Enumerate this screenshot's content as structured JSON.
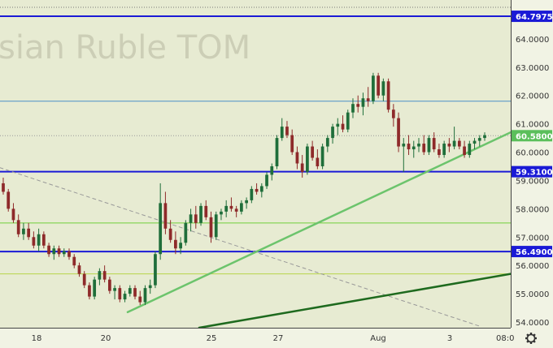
{
  "watermark": "sian Ruble TOM",
  "time_readout": "08:0",
  "settings_icon": "gear-icon",
  "chart_data": {
    "type": "candlestick",
    "ylim": [
      53.8,
      65.2
    ],
    "y_ticks": [
      "64.0000",
      "63.0000",
      "62.0000",
      "61.0000",
      "60.0000",
      "59.0000",
      "58.0000",
      "57.0000",
      "56.0000",
      "55.0000",
      "54.0000"
    ],
    "x_ticks": [
      "18",
      "20",
      "25",
      "27",
      "Aug",
      "3"
    ],
    "price_labels": [
      {
        "value": "64.7975",
        "color": "#1a1ad6"
      },
      {
        "value": "60.5800",
        "color": "#5bbf5b"
      },
      {
        "value": "59.3100",
        "color": "#1a1ad6"
      },
      {
        "value": "56.4900",
        "color": "#1a1ad6"
      }
    ],
    "horizontal_levels": [
      {
        "y": 64.7975,
        "color": "#1a1ad6",
        "width": 2,
        "style": "solid"
      },
      {
        "y": 61.8,
        "color": "#4a90c8",
        "width": 1,
        "style": "solid"
      },
      {
        "y": 60.58,
        "color": "#999999",
        "width": 1,
        "style": "dotted"
      },
      {
        "y": 59.31,
        "color": "#1a1ad6",
        "width": 2,
        "style": "solid"
      },
      {
        "y": 57.5,
        "color": "#6fcf3a",
        "width": 1,
        "style": "solid"
      },
      {
        "y": 56.49,
        "color": "#1a1ad6",
        "width": 2,
        "style": "solid"
      },
      {
        "y": 55.7,
        "color": "#b7d44a",
        "width": 1,
        "style": "solid"
      }
    ],
    "trend_lines": [
      {
        "x1": 0,
        "y1": 59.45,
        "x2": 94,
        "y2": 53.85,
        "color": "#999999",
        "width": 1,
        "style": "dashed"
      },
      {
        "x1": 25,
        "y1": 54.35,
        "x2": 100,
        "y2": 60.7,
        "color": "#6cc46c",
        "width": 2.5,
        "style": "solid"
      },
      {
        "x1": 39,
        "y1": 53.8,
        "x2": 100,
        "y2": 55.7,
        "color": "#1e6a1e",
        "width": 2.5,
        "style": "solid"
      }
    ],
    "colors": {
      "up": "#1f6e3a",
      "down": "#8e2a2a"
    },
    "candles": [
      [
        58.9,
        59.1,
        58.5,
        58.6
      ],
      [
        58.6,
        58.7,
        57.9,
        58.0
      ],
      [
        58.0,
        58.2,
        57.5,
        57.6
      ],
      [
        57.6,
        57.8,
        57.0,
        57.1
      ],
      [
        57.1,
        57.5,
        56.9,
        57.3
      ],
      [
        57.3,
        57.5,
        56.9,
        57.0
      ],
      [
        57.0,
        57.2,
        56.6,
        56.7
      ],
      [
        56.7,
        57.3,
        56.5,
        57.1
      ],
      [
        57.1,
        57.2,
        56.6,
        56.7
      ],
      [
        56.7,
        56.8,
        56.3,
        56.4
      ],
      [
        56.4,
        56.7,
        56.2,
        56.6
      ],
      [
        56.6,
        56.7,
        56.3,
        56.4
      ],
      [
        56.4,
        56.6,
        56.3,
        56.5
      ],
      [
        56.5,
        56.6,
        56.2,
        56.3
      ],
      [
        56.3,
        56.4,
        55.9,
        56.0
      ],
      [
        56.0,
        56.1,
        55.6,
        55.7
      ],
      [
        55.7,
        55.8,
        55.2,
        55.3
      ],
      [
        55.3,
        55.4,
        54.8,
        54.9
      ],
      [
        54.9,
        55.6,
        54.8,
        55.5
      ],
      [
        55.5,
        55.9,
        55.3,
        55.8
      ],
      [
        55.8,
        56.0,
        55.4,
        55.5
      ],
      [
        55.5,
        55.6,
        55.0,
        55.1
      ],
      [
        55.1,
        55.3,
        54.8,
        55.2
      ],
      [
        55.2,
        55.3,
        54.7,
        54.8
      ],
      [
        54.8,
        55.1,
        54.7,
        55.0
      ],
      [
        55.0,
        55.3,
        54.9,
        55.2
      ],
      [
        55.2,
        55.3,
        54.8,
        54.9
      ],
      [
        54.9,
        55.1,
        54.6,
        54.7
      ],
      [
        54.7,
        55.3,
        54.6,
        55.2
      ],
      [
        55.2,
        55.5,
        55.0,
        55.3
      ],
      [
        55.3,
        56.5,
        55.2,
        56.4
      ],
      [
        56.4,
        58.9,
        56.2,
        58.2
      ],
      [
        58.2,
        58.6,
        57.1,
        57.3
      ],
      [
        57.3,
        57.6,
        56.8,
        56.9
      ],
      [
        56.9,
        57.2,
        56.4,
        56.6
      ],
      [
        56.6,
        57.0,
        56.4,
        56.8
      ],
      [
        56.8,
        57.6,
        56.7,
        57.5
      ],
      [
        57.5,
        58.0,
        57.2,
        57.8
      ],
      [
        57.8,
        58.1,
        57.3,
        57.5
      ],
      [
        57.5,
        58.2,
        57.4,
        58.1
      ],
      [
        58.1,
        58.3,
        57.6,
        57.7
      ],
      [
        57.7,
        57.9,
        56.8,
        57.0
      ],
      [
        57.0,
        57.9,
        56.9,
        57.8
      ],
      [
        57.8,
        58.0,
        57.6,
        57.9
      ],
      [
        57.9,
        58.3,
        57.7,
        58.1
      ],
      [
        58.1,
        58.4,
        57.9,
        58.0
      ],
      [
        58.0,
        58.1,
        57.7,
        57.9
      ],
      [
        57.9,
        58.3,
        57.8,
        58.2
      ],
      [
        58.2,
        58.4,
        58.0,
        58.3
      ],
      [
        58.3,
        58.8,
        58.2,
        58.7
      ],
      [
        58.7,
        58.9,
        58.5,
        58.6
      ],
      [
        58.6,
        58.9,
        58.4,
        58.8
      ],
      [
        58.8,
        59.3,
        58.7,
        59.2
      ],
      [
        59.2,
        59.6,
        59.0,
        59.5
      ],
      [
        59.5,
        60.6,
        59.4,
        60.5
      ],
      [
        60.5,
        61.2,
        60.4,
        60.9
      ],
      [
        60.9,
        61.1,
        60.5,
        60.6
      ],
      [
        60.6,
        60.8,
        59.9,
        60.0
      ],
      [
        60.0,
        60.2,
        59.4,
        59.6
      ],
      [
        59.6,
        59.9,
        59.1,
        59.3
      ],
      [
        59.3,
        60.3,
        59.2,
        60.2
      ],
      [
        60.2,
        60.4,
        59.7,
        59.8
      ],
      [
        59.8,
        60.1,
        59.4,
        59.5
      ],
      [
        59.5,
        60.3,
        59.4,
        60.2
      ],
      [
        60.2,
        60.6,
        60.0,
        60.5
      ],
      [
        60.5,
        61.0,
        60.3,
        60.9
      ],
      [
        60.9,
        61.2,
        60.6,
        61.0
      ],
      [
        61.0,
        61.3,
        60.7,
        60.8
      ],
      [
        60.8,
        61.5,
        60.7,
        61.4
      ],
      [
        61.4,
        61.9,
        61.2,
        61.7
      ],
      [
        61.7,
        62.0,
        61.4,
        61.6
      ],
      [
        61.6,
        62.1,
        61.3,
        61.9
      ],
      [
        61.9,
        62.3,
        61.6,
        61.8
      ],
      [
        61.8,
        62.8,
        61.7,
        62.7
      ],
      [
        62.7,
        62.8,
        61.9,
        62.0
      ],
      [
        62.0,
        62.6,
        61.8,
        62.5
      ],
      [
        62.5,
        62.6,
        61.4,
        61.5
      ],
      [
        61.5,
        61.7,
        60.9,
        61.2
      ],
      [
        61.2,
        61.4,
        60.0,
        60.2
      ],
      [
        60.2,
        60.5,
        59.3,
        60.3
      ],
      [
        60.3,
        60.6,
        59.9,
        60.1
      ],
      [
        60.1,
        60.4,
        59.8,
        60.2
      ],
      [
        60.2,
        60.5,
        60.0,
        60.3
      ],
      [
        60.3,
        60.6,
        59.9,
        60.0
      ],
      [
        60.0,
        60.6,
        59.9,
        60.5
      ],
      [
        60.5,
        60.7,
        60.0,
        60.1
      ],
      [
        60.1,
        60.3,
        59.8,
        59.9
      ],
      [
        59.9,
        60.4,
        59.8,
        60.3
      ],
      [
        60.3,
        60.5,
        60.0,
        60.2
      ],
      [
        60.2,
        60.9,
        60.1,
        60.4
      ],
      [
        60.4,
        60.5,
        60.1,
        60.2
      ],
      [
        60.2,
        60.4,
        59.8,
        59.9
      ],
      [
        59.9,
        60.4,
        59.8,
        60.3
      ],
      [
        60.3,
        60.5,
        60.1,
        60.4
      ],
      [
        60.4,
        60.6,
        60.2,
        60.5
      ],
      [
        60.5,
        60.7,
        60.4,
        60.6
      ]
    ]
  }
}
